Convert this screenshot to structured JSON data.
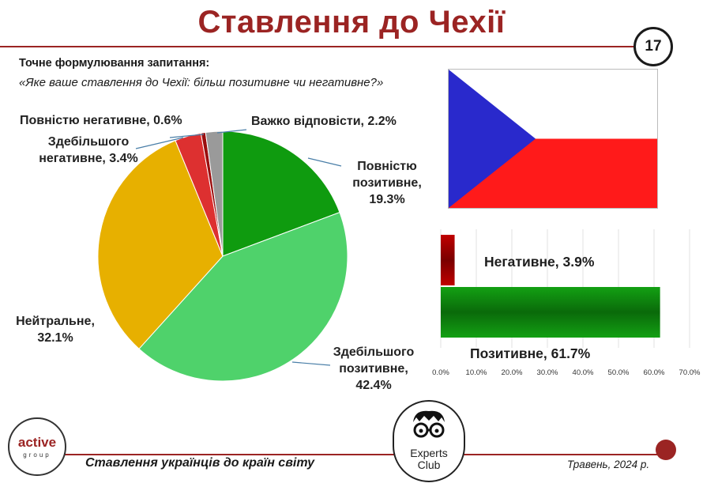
{
  "header": {
    "title": "Ставлення до Чехії",
    "page_number": "17"
  },
  "question": {
    "label": "Точне формулювання запитання:",
    "text": "«Яке ваше ставлення до Чехії: більш позитивне чи негативне?»"
  },
  "flag": {
    "name": "czech-flag",
    "colors": {
      "white": "#ffffff",
      "red": "#ff1a1a",
      "blue": "#2929cc"
    }
  },
  "chart_data": [
    {
      "type": "pie",
      "categories": [
        "Повністю позитивне",
        "Здебільшого позитивне",
        "Нейтральне",
        "Здебільшого негативне",
        "Повністю негативне",
        "Важко відповісти"
      ],
      "values": [
        19.3,
        42.4,
        32.1,
        3.4,
        0.6,
        2.2
      ],
      "labels": [
        [
          "Повністю",
          "позитивне,",
          "19.3%"
        ],
        [
          "Здебільшого",
          "позитивне,",
          "42.4%"
        ],
        [
          "Нейтральне,",
          "32.1%"
        ],
        [
          "Здебільшого",
          "негативне, 3.4%"
        ],
        [
          "Повністю негативне, 0.6%"
        ],
        [
          "Важко відповісти, 2.2%"
        ]
      ],
      "colors": [
        "#0f9b0f",
        "#4fd26b",
        "#e7b000",
        "#dd3030",
        "#9a0e0e",
        "#9a9a9a"
      ]
    },
    {
      "type": "bar",
      "orientation": "horizontal",
      "categories": [
        "Негативне",
        "Позитивне"
      ],
      "values": [
        3.9,
        61.7
      ],
      "labels": [
        "Негативне, 3.9%",
        "Позитивне, 61.7%"
      ],
      "xlim": [
        0,
        70
      ],
      "xticks": [
        "0.0%",
        "10.0%",
        "20.0%",
        "30.0%",
        "40.0%",
        "50.0%",
        "60.0%",
        "70.0%"
      ],
      "colors": [
        "#c00000",
        "#13a013"
      ]
    }
  ],
  "footer": {
    "company_logo_text": "active",
    "company_logo_subtext": "group",
    "partner_logo_line1": "Experts",
    "partner_logo_line2": "Club",
    "survey_title": "Ставлення українців до країн світу",
    "date": "Травень, 2024 р."
  }
}
